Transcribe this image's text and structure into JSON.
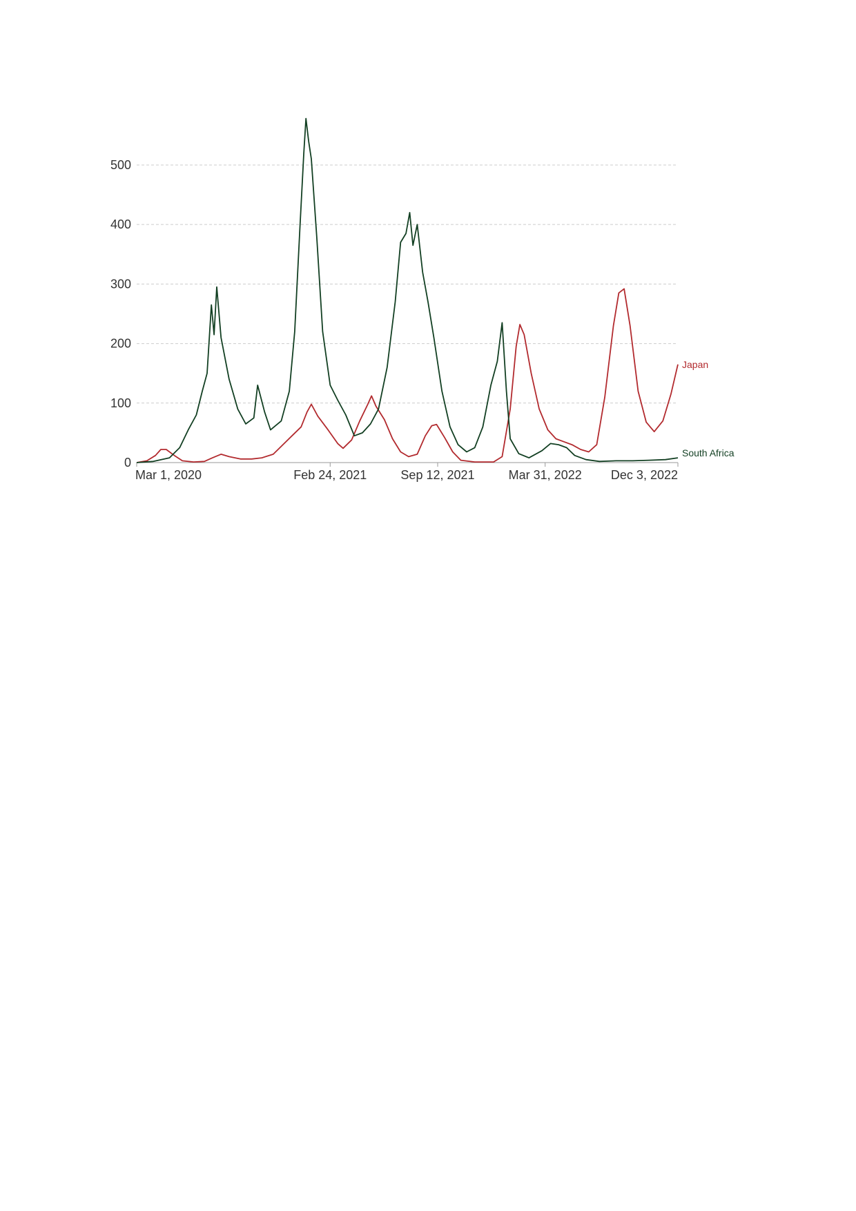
{
  "chart_data": {
    "type": "line",
    "title": "",
    "xlabel": "",
    "ylabel": "",
    "x_ticks": [
      "2020-03-01",
      "2021-02-24",
      "2021-09-12",
      "2022-03-31",
      "2022-12-03"
    ],
    "x_tick_labels": [
      "Mar 1, 2020",
      "Feb 24, 2021",
      "Sep 12, 2021",
      "Mar 31, 2022",
      "Dec 3, 2022"
    ],
    "xlim": [
      "2020-03-01",
      "2022-12-03"
    ],
    "y_ticks": [
      0,
      100,
      200,
      300,
      400,
      500
    ],
    "y_tick_labels": [
      "0",
      "100",
      "200",
      "300",
      "400",
      "500"
    ],
    "ylim": [
      0,
      580
    ],
    "grid": "horizontal dashed",
    "series": [
      {
        "name": "Japan",
        "color": "#b22a2e",
        "points": [
          [
            "2020-03-01",
            0
          ],
          [
            "2020-03-20",
            3
          ],
          [
            "2020-04-05",
            12
          ],
          [
            "2020-04-15",
            22
          ],
          [
            "2020-04-25",
            22
          ],
          [
            "2020-05-10",
            12
          ],
          [
            "2020-05-25",
            3
          ],
          [
            "2020-06-15",
            1
          ],
          [
            "2020-07-05",
            2
          ],
          [
            "2020-07-20",
            8
          ],
          [
            "2020-08-05",
            14
          ],
          [
            "2020-08-20",
            10
          ],
          [
            "2020-09-10",
            6
          ],
          [
            "2020-10-01",
            6
          ],
          [
            "2020-10-20",
            8
          ],
          [
            "2020-11-10",
            14
          ],
          [
            "2020-11-28",
            30
          ],
          [
            "2020-12-15",
            45
          ],
          [
            "2021-01-01",
            60
          ],
          [
            "2021-01-12",
            85
          ],
          [
            "2021-01-20",
            98
          ],
          [
            "2021-02-01",
            78
          ],
          [
            "2021-02-20",
            55
          ],
          [
            "2021-03-10",
            32
          ],
          [
            "2021-03-20",
            24
          ],
          [
            "2021-04-05",
            38
          ],
          [
            "2021-04-20",
            70
          ],
          [
            "2021-05-05",
            98
          ],
          [
            "2021-05-12",
            112
          ],
          [
            "2021-05-20",
            95
          ],
          [
            "2021-06-05",
            72
          ],
          [
            "2021-06-20",
            40
          ],
          [
            "2021-07-05",
            18
          ],
          [
            "2021-07-20",
            10
          ],
          [
            "2021-08-05",
            14
          ],
          [
            "2021-08-20",
            45
          ],
          [
            "2021-09-01",
            62
          ],
          [
            "2021-09-10",
            64
          ],
          [
            "2021-09-25",
            42
          ],
          [
            "2021-10-10",
            18
          ],
          [
            "2021-10-25",
            4
          ],
          [
            "2021-11-20",
            1
          ],
          [
            "2021-12-25",
            1
          ],
          [
            "2022-01-10",
            10
          ],
          [
            "2022-01-25",
            90
          ],
          [
            "2022-02-05",
            195
          ],
          [
            "2022-02-12",
            232
          ],
          [
            "2022-02-20",
            215
          ],
          [
            "2022-03-05",
            150
          ],
          [
            "2022-03-20",
            90
          ],
          [
            "2022-04-05",
            55
          ],
          [
            "2022-04-20",
            40
          ],
          [
            "2022-05-05",
            35
          ],
          [
            "2022-05-20",
            30
          ],
          [
            "2022-06-05",
            22
          ],
          [
            "2022-06-20",
            18
          ],
          [
            "2022-07-05",
            30
          ],
          [
            "2022-07-20",
            110
          ],
          [
            "2022-08-05",
            230
          ],
          [
            "2022-08-15",
            285
          ],
          [
            "2022-08-25",
            292
          ],
          [
            "2022-09-05",
            230
          ],
          [
            "2022-09-20",
            120
          ],
          [
            "2022-10-05",
            68
          ],
          [
            "2022-10-20",
            52
          ],
          [
            "2022-11-05",
            70
          ],
          [
            "2022-11-20",
            115
          ],
          [
            "2022-12-03",
            165
          ]
        ]
      },
      {
        "name": "South Africa",
        "color": "#123f22",
        "points": [
          [
            "2020-03-01",
            0
          ],
          [
            "2020-04-01",
            2
          ],
          [
            "2020-05-01",
            8
          ],
          [
            "2020-05-20",
            25
          ],
          [
            "2020-06-05",
            55
          ],
          [
            "2020-06-20",
            80
          ],
          [
            "2020-07-01",
            120
          ],
          [
            "2020-07-10",
            150
          ],
          [
            "2020-07-18",
            265
          ],
          [
            "2020-07-23",
            215
          ],
          [
            "2020-07-28",
            295
          ],
          [
            "2020-08-05",
            210
          ],
          [
            "2020-08-20",
            140
          ],
          [
            "2020-09-05",
            90
          ],
          [
            "2020-09-20",
            65
          ],
          [
            "2020-10-05",
            75
          ],
          [
            "2020-10-12",
            130
          ],
          [
            "2020-10-25",
            85
          ],
          [
            "2020-11-05",
            55
          ],
          [
            "2020-11-25",
            70
          ],
          [
            "2020-12-10",
            120
          ],
          [
            "2020-12-20",
            220
          ],
          [
            "2020-12-30",
            400
          ],
          [
            "2021-01-06",
            520
          ],
          [
            "2021-01-10",
            578
          ],
          [
            "2021-01-15",
            540
          ],
          [
            "2021-01-20",
            510
          ],
          [
            "2021-01-30",
            380
          ],
          [
            "2021-02-10",
            220
          ],
          [
            "2021-02-24",
            130
          ],
          [
            "2021-03-10",
            105
          ],
          [
            "2021-03-25",
            80
          ],
          [
            "2021-04-10",
            45
          ],
          [
            "2021-04-25",
            50
          ],
          [
            "2021-05-10",
            65
          ],
          [
            "2021-05-25",
            90
          ],
          [
            "2021-06-10",
            160
          ],
          [
            "2021-06-25",
            270
          ],
          [
            "2021-07-05",
            370
          ],
          [
            "2021-07-15",
            385
          ],
          [
            "2021-07-22",
            420
          ],
          [
            "2021-07-28",
            365
          ],
          [
            "2021-08-05",
            400
          ],
          [
            "2021-08-15",
            320
          ],
          [
            "2021-08-25",
            270
          ],
          [
            "2021-09-05",
            210
          ],
          [
            "2021-09-20",
            120
          ],
          [
            "2021-10-05",
            60
          ],
          [
            "2021-10-20",
            30
          ],
          [
            "2021-11-05",
            18
          ],
          [
            "2021-11-20",
            25
          ],
          [
            "2021-12-05",
            60
          ],
          [
            "2021-12-20",
            130
          ],
          [
            "2022-01-01",
            170
          ],
          [
            "2022-01-10",
            235
          ],
          [
            "2022-01-18",
            120
          ],
          [
            "2022-01-25",
            40
          ],
          [
            "2022-02-10",
            15
          ],
          [
            "2022-03-01",
            8
          ],
          [
            "2022-03-25",
            20
          ],
          [
            "2022-04-10",
            32
          ],
          [
            "2022-04-25",
            30
          ],
          [
            "2022-05-10",
            25
          ],
          [
            "2022-05-25",
            12
          ],
          [
            "2022-06-15",
            5
          ],
          [
            "2022-07-10",
            2
          ],
          [
            "2022-08-10",
            3
          ],
          [
            "2022-09-10",
            3
          ],
          [
            "2022-10-10",
            4
          ],
          [
            "2022-11-10",
            5
          ],
          [
            "2022-12-03",
            8
          ]
        ]
      }
    ]
  }
}
